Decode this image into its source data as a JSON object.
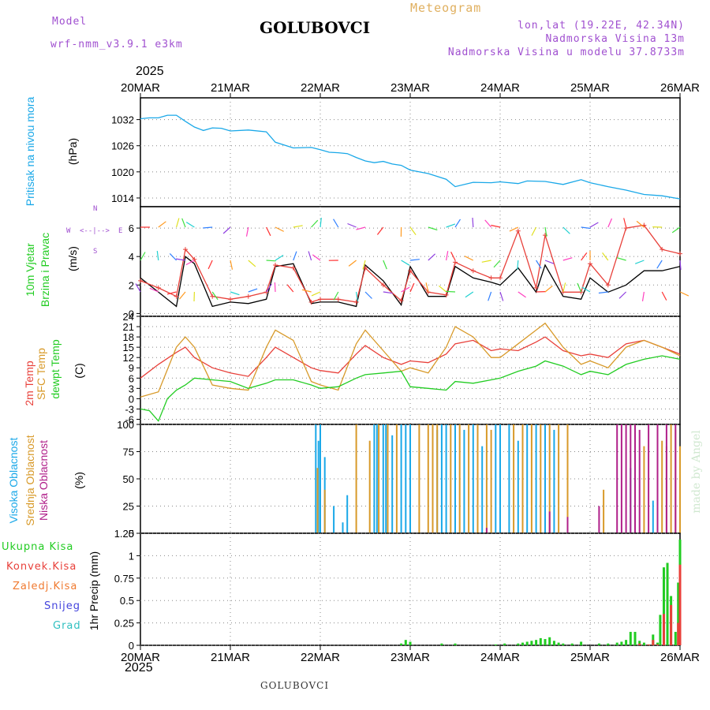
{
  "header": {
    "model_label": "Model",
    "model_name": "wrf-nmm_v3.9.1 e3km",
    "product": "Meteogram",
    "station": "GOLUBOVCI",
    "coords": "lon,lat (19.22E, 42.34N)",
    "elevation": "Nadmorska Visina 13m",
    "model_elevation": "Nadmorska Visina u modelu 37.8733m",
    "year_top": "2025",
    "year_bottom": "2025",
    "footer_station": "GOLUBOVCI",
    "watermark": "made by Angel"
  },
  "colors": {
    "pressure": "#1aa8e8",
    "wind_black": "#000000",
    "wind_red": "#e8403a",
    "t2m": "#e8403a",
    "tsfc": "#d89a2a",
    "dewpt": "#22cc22",
    "high_cloud": "#1aa8e8",
    "mid_cloud": "#d89a2a",
    "low_cloud": "#b0208a",
    "precip_total": "#22cc22",
    "precip_conv": "#e8403a",
    "precip_froz": "#f07a30",
    "snow": "#4444dd",
    "graupel": "#30c0c0",
    "grid": "#888888"
  },
  "axis_labels": {
    "pressure": [
      "Pritisak na nivou mora",
      "(hPa)"
    ],
    "wind": [
      "10m Vjetar",
      "Brzina i Pravac",
      "(m/s)"
    ],
    "wind_rose": [
      "W",
      "E",
      "N",
      "S",
      "<--|-->"
    ],
    "temp": [
      "2m Temp",
      "SFC Temp",
      "dewpt Temp",
      "(C)"
    ],
    "cloud": [
      "Visoka Oblacnost",
      "Srednja Oblacnost",
      "Niska Oblacnost",
      "(%)"
    ],
    "precip_title": "1hr Precip (mm)",
    "precip_legend": [
      "Ukupna Kisa",
      "Konvek.Kisa",
      "Zaledj.Kisa",
      "Snijeg",
      "Grad"
    ]
  },
  "chart_data": {
    "type": "line",
    "title": "Meteogram GOLUBOVCI",
    "x_labels": [
      "20MAR",
      "21MAR",
      "22MAR",
      "23MAR",
      "24MAR",
      "25MAR",
      "26MAR"
    ],
    "x_range_days": [
      0,
      6
    ],
    "panels": [
      {
        "id": "pressure",
        "ylabel": "Pritisak na nivou mora (hPa)",
        "ylim": [
          1012,
          1037
        ],
        "ticks": [
          1014,
          1020,
          1026,
          1032
        ],
        "series": [
          {
            "name": "Pritisak",
            "x": [
              0,
              0.1,
              0.2,
              0.3,
              0.4,
              0.5,
              0.6,
              0.7,
              0.8,
              0.9,
              1,
              1.2,
              1.4,
              1.5,
              1.7,
              1.9,
              2,
              2.1,
              2.2,
              2.3,
              2.4,
              2.5,
              2.6,
              2.7,
              2.8,
              2.9,
              3,
              3.2,
              3.4,
              3.5,
              3.7,
              3.9,
              4,
              4.2,
              4.3,
              4.5,
              4.7,
              4.9,
              5,
              5.2,
              5.4,
              5.6,
              5.8,
              6
            ],
            "y": [
              1032.2,
              1032.4,
              1032.4,
              1033,
              1033,
              1031.6,
              1030.3,
              1029.5,
              1030.1,
              1030,
              1029.4,
              1029.6,
              1029.2,
              1026.8,
              1025.5,
              1025.6,
              1025.1,
              1024.5,
              1024.4,
              1024.2,
              1023.3,
              1022.5,
              1022.1,
              1022.4,
              1021.8,
              1021.5,
              1020.4,
              1019.6,
              1018.3,
              1016.6,
              1017.6,
              1017.5,
              1017.7,
              1017.3,
              1017.9,
              1017.8,
              1017.1,
              1018.2,
              1017.5,
              1016.6,
              1015.8,
              1014.8,
              1014.5,
              1013.8
            ]
          }
        ]
      },
      {
        "id": "wind",
        "ylabel": "10m Vjetar Brzina i Pravac (m/s)",
        "ylim": [
          -0.2,
          7.5
        ],
        "ticks": [
          0,
          2,
          4,
          6
        ],
        "series": [
          {
            "name": "speed",
            "x": [
              0,
              0.2,
              0.4,
              0.5,
              0.6,
              0.8,
              1,
              1.2,
              1.4,
              1.5,
              1.7,
              1.9,
              2,
              2.2,
              2.4,
              2.5,
              2.7,
              2.9,
              3,
              3.2,
              3.4,
              3.5,
              3.7,
              3.9,
              4,
              4.2,
              4.4,
              4.5,
              4.7,
              4.9,
              5,
              5.2,
              5.4,
              5.6,
              5.8,
              6
            ],
            "y": [
              2.5,
              1.5,
              0.5,
              4,
              3.5,
              0.5,
              0.8,
              0.7,
              1,
              3.3,
              3.5,
              0.7,
              0.8,
              0.8,
              0.5,
              3.4,
              2.3,
              0.6,
              3.3,
              1.2,
              1.2,
              3.3,
              2.5,
              2.2,
              2,
              3.2,
              1.5,
              3.4,
              1.2,
              1,
              2.5,
              1.5,
              2,
              3,
              3,
              3.3
            ]
          },
          {
            "name": "gust",
            "x": [
              0,
              0.2,
              0.4,
              0.5,
              0.6,
              0.8,
              1,
              1.2,
              1.4,
              1.5,
              1.7,
              1.9,
              2,
              2.2,
              2.4,
              2.5,
              2.7,
              2.9,
              3,
              3.2,
              3.4,
              3.5,
              3.7,
              3.9,
              4,
              4.2,
              4.4,
              4.5,
              4.7,
              4.9,
              5,
              5.2,
              5.4,
              5.6,
              5.8,
              6
            ],
            "y": [
              2.3,
              1.8,
              1.2,
              4.5,
              3.8,
              1.2,
              1,
              1.2,
              1.5,
              3.4,
              3.2,
              0.8,
              1,
              1,
              0.8,
              3.2,
              2,
              0.9,
              3,
              1.5,
              1.3,
              3.6,
              3,
              2.5,
              2.5,
              5.8,
              1.8,
              5.5,
              1.5,
              1.5,
              3.5,
              2,
              6,
              6.2,
              4.5,
              4.2
            ]
          }
        ]
      },
      {
        "id": "temp",
        "ylabel": "(C)",
        "ylim": [
          -7.5,
          24
        ],
        "ticks": [
          -6,
          -3,
          0,
          3,
          6,
          9,
          12,
          15,
          18,
          21,
          24
        ],
        "series": [
          {
            "name": "2m Temp",
            "x": [
              0,
              0.2,
              0.4,
              0.5,
              0.6,
              0.8,
              1,
              1.2,
              1.4,
              1.5,
              1.7,
              1.9,
              2,
              2.2,
              2.4,
              2.5,
              2.7,
              2.9,
              3,
              3.2,
              3.4,
              3.5,
              3.7,
              3.9,
              4,
              4.2,
              4.4,
              4.5,
              4.7,
              4.9,
              5,
              5.2,
              5.4,
              5.6,
              5.8,
              6
            ],
            "y": [
              6,
              10,
              13.5,
              15,
              12,
              9,
              7.5,
              6.5,
              12,
              15,
              12,
              9,
              8.2,
              7.5,
              13,
              15.5,
              12,
              10,
              11,
              10.5,
              13,
              16,
              17,
              14,
              14.5,
              14,
              16.5,
              18,
              14,
              12.5,
              13,
              12,
              16,
              17,
              15,
              13
            ]
          },
          {
            "name": "SFC Temp",
            "x": [
              0,
              0.2,
              0.4,
              0.5,
              0.6,
              0.8,
              1,
              1.2,
              1.4,
              1.5,
              1.7,
              1.9,
              2,
              2.2,
              2.4,
              2.5,
              2.7,
              2.9,
              3,
              3.2,
              3.4,
              3.5,
              3.7,
              3.9,
              4,
              4.2,
              4.4,
              4.5,
              4.7,
              4.9,
              5,
              5.2,
              5.4,
              5.6,
              5.8,
              6
            ],
            "y": [
              0.5,
              2,
              15,
              18,
              15,
              4,
              3,
              2.5,
              15,
              20,
              17,
              5,
              4,
              2.5,
              16,
              20,
              14,
              8,
              9,
              7.5,
              15,
              21,
              18,
              12,
              12,
              16,
              20,
              22,
              15,
              10,
              11,
              9,
              15,
              17,
              15,
              12.5
            ]
          },
          {
            "name": "dewpt Temp",
            "x": [
              0,
              0.1,
              0.2,
              0.3,
              0.4,
              0.5,
              0.6,
              0.8,
              1,
              1.2,
              1.4,
              1.5,
              1.7,
              1.9,
              2,
              2.2,
              2.4,
              2.5,
              2.7,
              2.9,
              3,
              3.2,
              3.4,
              3.5,
              3.7,
              3.9,
              4,
              4.2,
              4.4,
              4.5,
              4.7,
              4.9,
              5,
              5.2,
              5.4,
              5.6,
              5.8,
              6
            ],
            "y": [
              -3,
              -3.5,
              -6.5,
              0,
              2.5,
              4,
              6,
              5.5,
              5,
              3,
              4.5,
              5.5,
              5.5,
              4,
              3,
              3.5,
              6,
              7,
              7.5,
              8,
              3.5,
              3,
              2.5,
              5,
              4.5,
              5.5,
              6,
              8,
              9.5,
              11,
              9.5,
              7,
              8,
              7,
              10,
              11.5,
              12.5,
              11.5
            ]
          }
        ]
      },
      {
        "id": "cloud",
        "ylabel": "(%)",
        "ylim": [
          0,
          100
        ],
        "ticks": [
          0,
          25,
          50,
          75,
          100
        ],
        "series": [
          {
            "name": "Visoka Oblacnost",
            "type": "bar",
            "x": [
              1.95,
              1.98,
              2.0,
              2.05,
              2.15,
              2.25,
              2.3,
              2.6,
              2.63,
              2.7,
              2.73,
              2.8,
              2.9,
              2.95,
              3.0,
              3.3,
              3.35,
              3.4,
              3.5,
              3.6,
              3.7,
              3.8,
              3.95,
              4.0,
              4.1,
              4.2,
              4.3,
              4.4,
              4.5,
              4.6,
              5.45,
              5.7
            ],
            "y": [
              100,
              85,
              100,
              70,
              25,
              10,
              35,
              100,
              100,
              100,
              100,
              90,
              100,
              100,
              100,
              95,
              100,
              100,
              100,
              95,
              100,
              80,
              100,
              100,
              100,
              85,
              100,
              100,
              100,
              95,
              60,
              30
            ]
          },
          {
            "name": "Srednja Oblacnost",
            "type": "bar",
            "x": [
              1.97,
              2.05,
              2.4,
              2.55,
              2.65,
              2.75,
              2.85,
              3.1,
              3.2,
              3.25,
              3.3,
              3.45,
              3.55,
              3.65,
              3.75,
              3.85,
              3.9,
              4.15,
              4.25,
              4.35,
              4.45,
              4.55,
              4.65,
              4.75,
              5.15,
              5.6,
              5.75,
              5.8,
              5.85,
              5.9,
              5.95,
              6.0
            ],
            "y": [
              60,
              40,
              100,
              85,
              100,
              100,
              100,
              100,
              100,
              100,
              100,
              100,
              100,
              100,
              100,
              100,
              95,
              100,
              100,
              100,
              100,
              100,
              100,
              100,
              40,
              80,
              40,
              85,
              80,
              100,
              95,
              80
            ]
          },
          {
            "name": "Niska Oblacnost",
            "type": "bar",
            "x": [
              3.85,
              4.55,
              4.75,
              5.1,
              5.3,
              5.35,
              5.4,
              5.45,
              5.5,
              5.55,
              5.65,
              5.75,
              5.85,
              5.95
            ],
            "y": [
              5,
              20,
              15,
              25,
              100,
              100,
              100,
              100,
              100,
              95,
              100,
              100,
              100,
              100
            ]
          }
        ]
      },
      {
        "id": "precip",
        "ylabel": "1hr Precip (mm)",
        "ylim": [
          0,
          1.25
        ],
        "ticks": [
          0,
          0.25,
          0.5,
          0.75,
          1,
          1.25
        ],
        "series": [
          {
            "name": "Ukupna Kisa",
            "type": "bar",
            "x": [
              2.9,
              2.95,
              3.0,
              3.35,
              3.5,
              3.95,
              4.05,
              4.2,
              4.25,
              4.3,
              4.35,
              4.4,
              4.45,
              4.5,
              4.55,
              4.6,
              4.65,
              4.7,
              4.8,
              4.9,
              5.1,
              5.2,
              5.3,
              5.35,
              5.4,
              5.45,
              5.5,
              5.55,
              5.6,
              5.65,
              5.7,
              5.75,
              5.78,
              5.82,
              5.86,
              5.9,
              5.95,
              5.98,
              6.0
            ],
            "y": [
              0.02,
              0.06,
              0.04,
              0.02,
              0.02,
              0.01,
              0.02,
              0.02,
              0.03,
              0.04,
              0.05,
              0.06,
              0.08,
              0.07,
              0.09,
              0.05,
              0.03,
              0.02,
              0.02,
              0.04,
              0.02,
              0.02,
              0.03,
              0.04,
              0.06,
              0.15,
              0.15,
              0.05,
              0.03,
              0.01,
              0.12,
              0.03,
              0.34,
              0.87,
              0.92,
              0.55,
              0.15,
              0.7,
              1.18
            ]
          },
          {
            "name": "Konvek.Kisa",
            "type": "bar",
            "x": [
              5.55,
              5.65,
              5.7,
              5.75,
              5.82,
              5.9,
              5.98,
              6.0
            ],
            "y": [
              0.02,
              0.01,
              0.06,
              0.01,
              0.35,
              0.45,
              0.25,
              0.9
            ]
          }
        ]
      }
    ]
  }
}
